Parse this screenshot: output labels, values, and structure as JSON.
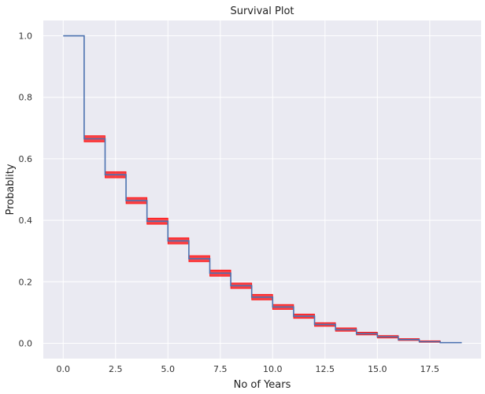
{
  "chart_data": {
    "type": "line",
    "title": "Survival Plot",
    "xlabel": "No of Years",
    "ylabel": "Probablity",
    "xlim": [
      -0.95,
      19.95
    ],
    "ylim": [
      -0.05,
      1.05
    ],
    "xticks": [
      0.0,
      2.5,
      5.0,
      7.5,
      10.0,
      12.5,
      15.0,
      17.5
    ],
    "xtick_labels": [
      "0.0",
      "2.5",
      "5.0",
      "7.5",
      "10.0",
      "12.5",
      "15.0",
      "17.5"
    ],
    "yticks": [
      0.0,
      0.2,
      0.4,
      0.6,
      0.8,
      1.0
    ],
    "ytick_labels": [
      "0.0",
      "0.2",
      "0.4",
      "0.6",
      "0.8",
      "1.0"
    ],
    "grid": true,
    "background_color": "#EAEAF2",
    "grid_color": "#FFFFFF",
    "series": [
      {
        "style": "step-post",
        "color": "#4C72B0",
        "x": [
          0,
          1,
          2,
          3,
          4,
          5,
          6,
          7,
          8,
          9,
          10,
          11,
          12,
          13,
          14,
          15,
          16,
          17,
          18,
          19
        ],
        "y": [
          1.0,
          0.665,
          0.548,
          0.464,
          0.397,
          0.333,
          0.275,
          0.228,
          0.187,
          0.15,
          0.118,
          0.088,
          0.061,
          0.044,
          0.031,
          0.021,
          0.012,
          0.005,
          0.002,
          0.0
        ]
      }
    ],
    "confidence_bands": {
      "color": "#FF0000",
      "intervals": [
        {
          "x0": 1,
          "x1": 2,
          "low": 0.655,
          "high": 0.675
        },
        {
          "x0": 2,
          "x1": 3,
          "low": 0.538,
          "high": 0.558
        },
        {
          "x0": 3,
          "x1": 4,
          "low": 0.454,
          "high": 0.474
        },
        {
          "x0": 4,
          "x1": 5,
          "low": 0.387,
          "high": 0.407
        },
        {
          "x0": 5,
          "x1": 6,
          "low": 0.323,
          "high": 0.343
        },
        {
          "x0": 6,
          "x1": 7,
          "low": 0.265,
          "high": 0.285
        },
        {
          "x0": 7,
          "x1": 8,
          "low": 0.218,
          "high": 0.238
        },
        {
          "x0": 8,
          "x1": 9,
          "low": 0.178,
          "high": 0.196
        },
        {
          "x0": 9,
          "x1": 10,
          "low": 0.141,
          "high": 0.159
        },
        {
          "x0": 10,
          "x1": 11,
          "low": 0.11,
          "high": 0.126
        },
        {
          "x0": 11,
          "x1": 12,
          "low": 0.081,
          "high": 0.095
        },
        {
          "x0": 12,
          "x1": 13,
          "low": 0.055,
          "high": 0.067
        },
        {
          "x0": 13,
          "x1": 14,
          "low": 0.039,
          "high": 0.05
        },
        {
          "x0": 14,
          "x1": 15,
          "low": 0.027,
          "high": 0.036
        },
        {
          "x0": 15,
          "x1": 16,
          "low": 0.017,
          "high": 0.025
        },
        {
          "x0": 16,
          "x1": 17,
          "low": 0.009,
          "high": 0.015
        },
        {
          "x0": 17,
          "x1": 18,
          "low": 0.003,
          "high": 0.008
        }
      ]
    }
  }
}
